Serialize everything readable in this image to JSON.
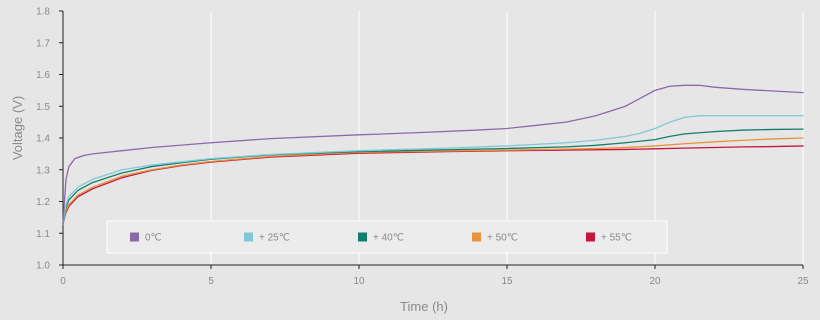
{
  "chart_data": {
    "type": "line",
    "xlabel": "Time (h)",
    "ylabel": "Voltage (V)",
    "xlim": [
      0,
      25
    ],
    "ylim": [
      1.0,
      1.8
    ],
    "xticks": [
      "0",
      "5",
      "10",
      "15",
      "20",
      "25"
    ],
    "yticks": [
      "1.0",
      "1.1",
      "1.2",
      "1.3",
      "1.4",
      "1.5",
      "1.6",
      "1.7",
      "1.8"
    ],
    "grid": "vertical",
    "legend_position": "bottom-inside",
    "series": [
      {
        "name": "0℃",
        "color": "#8c6aaa",
        "points": [
          [
            0,
            1.13
          ],
          [
            0.1,
            1.27
          ],
          [
            0.2,
            1.31
          ],
          [
            0.4,
            1.335
          ],
          [
            0.7,
            1.345
          ],
          [
            1,
            1.35
          ],
          [
            2,
            1.36
          ],
          [
            3,
            1.37
          ],
          [
            5,
            1.385
          ],
          [
            7,
            1.398
          ],
          [
            10,
            1.41
          ],
          [
            12,
            1.417
          ],
          [
            14,
            1.425
          ],
          [
            15,
            1.43
          ],
          [
            16,
            1.44
          ],
          [
            17,
            1.45
          ],
          [
            18,
            1.47
          ],
          [
            19,
            1.5
          ],
          [
            19.5,
            1.525
          ],
          [
            20,
            1.55
          ],
          [
            20.5,
            1.563
          ],
          [
            21,
            1.566
          ],
          [
            21.5,
            1.566
          ],
          [
            22,
            1.56
          ],
          [
            23,
            1.553
          ],
          [
            24,
            1.548
          ],
          [
            25,
            1.543
          ]
        ]
      },
      {
        "name": "+ 25℃",
        "color": "#7fc9d6",
        "points": [
          [
            0,
            1.13
          ],
          [
            0.1,
            1.19
          ],
          [
            0.2,
            1.215
          ],
          [
            0.5,
            1.245
          ],
          [
            1,
            1.27
          ],
          [
            2,
            1.3
          ],
          [
            3,
            1.315
          ],
          [
            4,
            1.325
          ],
          [
            5,
            1.335
          ],
          [
            7,
            1.348
          ],
          [
            10,
            1.36
          ],
          [
            13,
            1.368
          ],
          [
            15,
            1.375
          ],
          [
            17,
            1.385
          ],
          [
            18,
            1.393
          ],
          [
            19,
            1.405
          ],
          [
            19.5,
            1.415
          ],
          [
            20,
            1.43
          ],
          [
            20.5,
            1.45
          ],
          [
            21,
            1.465
          ],
          [
            21.5,
            1.47
          ],
          [
            22,
            1.47
          ],
          [
            23,
            1.47
          ],
          [
            25,
            1.47
          ]
        ]
      },
      {
        "name": "+ 40℃",
        "color": "#11806a",
        "points": [
          [
            0,
            1.13
          ],
          [
            0.1,
            1.18
          ],
          [
            0.2,
            1.205
          ],
          [
            0.5,
            1.235
          ],
          [
            1,
            1.26
          ],
          [
            2,
            1.29
          ],
          [
            3,
            1.31
          ],
          [
            4,
            1.322
          ],
          [
            5,
            1.333
          ],
          [
            7,
            1.347
          ],
          [
            10,
            1.357
          ],
          [
            13,
            1.363
          ],
          [
            15,
            1.367
          ],
          [
            17,
            1.372
          ],
          [
            18,
            1.377
          ],
          [
            19,
            1.385
          ],
          [
            20,
            1.395
          ],
          [
            20.5,
            1.405
          ],
          [
            21,
            1.413
          ],
          [
            22,
            1.42
          ],
          [
            23,
            1.425
          ],
          [
            24,
            1.427
          ],
          [
            25,
            1.428
          ]
        ]
      },
      {
        "name": "+ 50℃",
        "color": "#e8923a",
        "points": [
          [
            0,
            1.13
          ],
          [
            0.1,
            1.17
          ],
          [
            0.2,
            1.19
          ],
          [
            0.5,
            1.22
          ],
          [
            1,
            1.245
          ],
          [
            2,
            1.28
          ],
          [
            3,
            1.3
          ],
          [
            4,
            1.315
          ],
          [
            5,
            1.326
          ],
          [
            7,
            1.342
          ],
          [
            10,
            1.355
          ],
          [
            13,
            1.359
          ],
          [
            15,
            1.362
          ],
          [
            17,
            1.365
          ],
          [
            18,
            1.367
          ],
          [
            19,
            1.37
          ],
          [
            20,
            1.375
          ],
          [
            21,
            1.382
          ],
          [
            22,
            1.388
          ],
          [
            23,
            1.393
          ],
          [
            24,
            1.397
          ],
          [
            25,
            1.4
          ]
        ]
      },
      {
        "name": "+ 55℃",
        "color": "#c8153e",
        "points": [
          [
            0,
            1.13
          ],
          [
            0.1,
            1.165
          ],
          [
            0.2,
            1.185
          ],
          [
            0.5,
            1.215
          ],
          [
            1,
            1.24
          ],
          [
            2,
            1.275
          ],
          [
            3,
            1.298
          ],
          [
            4,
            1.313
          ],
          [
            5,
            1.324
          ],
          [
            7,
            1.34
          ],
          [
            10,
            1.352
          ],
          [
            13,
            1.357
          ],
          [
            15,
            1.36
          ],
          [
            17,
            1.362
          ],
          [
            19,
            1.364
          ],
          [
            20,
            1.366
          ],
          [
            21,
            1.368
          ],
          [
            22,
            1.37
          ],
          [
            23,
            1.372
          ],
          [
            24,
            1.373
          ],
          [
            25,
            1.375
          ]
        ]
      }
    ]
  }
}
